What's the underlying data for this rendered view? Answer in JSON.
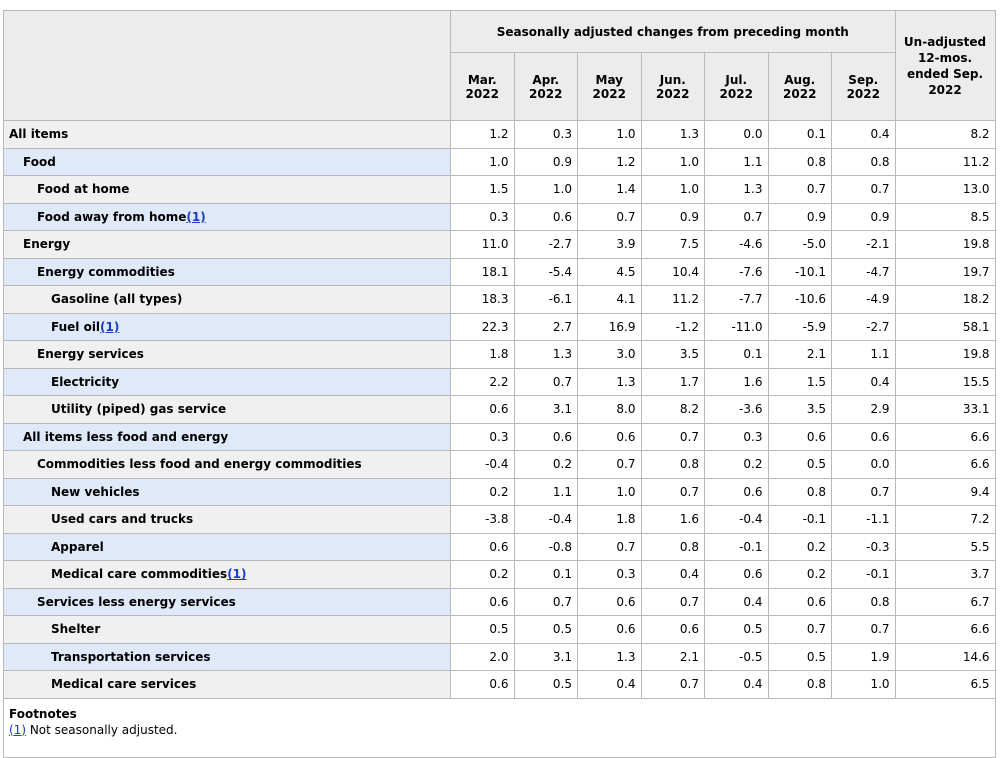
{
  "table": {
    "group_header": "Seasonally adjusted changes from preceding month",
    "unadjusted_header": "Un-adjusted 12-mos. ended Sep. 2022",
    "columns": [
      {
        "month": "Mar.",
        "year": "2022"
      },
      {
        "month": "Apr.",
        "year": "2022"
      },
      {
        "month": "May",
        "year": "2022"
      },
      {
        "month": "Jun.",
        "year": "2022"
      },
      {
        "month": "Jul.",
        "year": "2022"
      },
      {
        "month": "Aug.",
        "year": "2022"
      },
      {
        "month": "Sep.",
        "year": "2022"
      }
    ],
    "rows": [
      {
        "label": "All items",
        "values": [
          "1.2",
          "0.3",
          "1.0",
          "1.3",
          "0.0",
          "0.1",
          "0.4",
          "8.2"
        ]
      },
      {
        "label": "Food",
        "values": [
          "1.0",
          "0.9",
          "1.2",
          "1.0",
          "1.1",
          "0.8",
          "0.8",
          "11.2"
        ]
      },
      {
        "label": "Food at home",
        "values": [
          "1.5",
          "1.0",
          "1.4",
          "1.0",
          "1.3",
          "0.7",
          "0.7",
          "13.0"
        ]
      },
      {
        "label": "Food away from home",
        "ref": "(1)",
        "values": [
          "0.3",
          "0.6",
          "0.7",
          "0.9",
          "0.7",
          "0.9",
          "0.9",
          "8.5"
        ]
      },
      {
        "label": "Energy",
        "values": [
          "11.0",
          "-2.7",
          "3.9",
          "7.5",
          "-4.6",
          "-5.0",
          "-2.1",
          "19.8"
        ]
      },
      {
        "label": "Energy commodities",
        "values": [
          "18.1",
          "-5.4",
          "4.5",
          "10.4",
          "-7.6",
          "-10.1",
          "-4.7",
          "19.7"
        ]
      },
      {
        "label": "Gasoline (all types)",
        "values": [
          "18.3",
          "-6.1",
          "4.1",
          "11.2",
          "-7.7",
          "-10.6",
          "-4.9",
          "18.2"
        ]
      },
      {
        "label": "Fuel oil",
        "ref": "(1)",
        "values": [
          "22.3",
          "2.7",
          "16.9",
          "-1.2",
          "-11.0",
          "-5.9",
          "-2.7",
          "58.1"
        ]
      },
      {
        "label": "Energy services",
        "values": [
          "1.8",
          "1.3",
          "3.0",
          "3.5",
          "0.1",
          "2.1",
          "1.1",
          "19.8"
        ]
      },
      {
        "label": "Electricity",
        "values": [
          "2.2",
          "0.7",
          "1.3",
          "1.7",
          "1.6",
          "1.5",
          "0.4",
          "15.5"
        ]
      },
      {
        "label": "Utility (piped) gas service",
        "values": [
          "0.6",
          "3.1",
          "8.0",
          "8.2",
          "-3.6",
          "3.5",
          "2.9",
          "33.1"
        ]
      },
      {
        "label": "All items less food and energy",
        "values": [
          "0.3",
          "0.6",
          "0.6",
          "0.7",
          "0.3",
          "0.6",
          "0.6",
          "6.6"
        ]
      },
      {
        "label": "Commodities less food and energy commodities",
        "values": [
          "-0.4",
          "0.2",
          "0.7",
          "0.8",
          "0.2",
          "0.5",
          "0.0",
          "6.6"
        ]
      },
      {
        "label": "New vehicles",
        "values": [
          "0.2",
          "1.1",
          "1.0",
          "0.7",
          "0.6",
          "0.8",
          "0.7",
          "9.4"
        ]
      },
      {
        "label": "Used cars and trucks",
        "values": [
          "-3.8",
          "-0.4",
          "1.8",
          "1.6",
          "-0.4",
          "-0.1",
          "-1.1",
          "7.2"
        ]
      },
      {
        "label": "Apparel",
        "values": [
          "0.6",
          "-0.8",
          "0.7",
          "0.8",
          "-0.1",
          "0.2",
          "-0.3",
          "5.5"
        ]
      },
      {
        "label": "Medical care commodities",
        "ref": "(1)",
        "values": [
          "0.2",
          "0.1",
          "0.3",
          "0.4",
          "0.6",
          "0.2",
          "-0.1",
          "3.7"
        ]
      },
      {
        "label": "Services less energy services",
        "values": [
          "0.6",
          "0.7",
          "0.6",
          "0.7",
          "0.4",
          "0.6",
          "0.8",
          "6.7"
        ]
      },
      {
        "label": "Shelter",
        "values": [
          "0.5",
          "0.5",
          "0.6",
          "0.6",
          "0.5",
          "0.7",
          "0.7",
          "6.6"
        ]
      },
      {
        "label": "Transportation services",
        "values": [
          "2.0",
          "3.1",
          "1.3",
          "2.1",
          "-0.5",
          "0.5",
          "1.9",
          "14.6"
        ]
      },
      {
        "label": "Medical care services",
        "values": [
          "0.6",
          "0.5",
          "0.4",
          "0.7",
          "0.4",
          "0.8",
          "1.0",
          "6.5"
        ]
      }
    ]
  },
  "footnotes": {
    "title": "Footnotes",
    "items": [
      {
        "marker": "(1)",
        "text": "Not seasonally adjusted."
      }
    ]
  }
}
